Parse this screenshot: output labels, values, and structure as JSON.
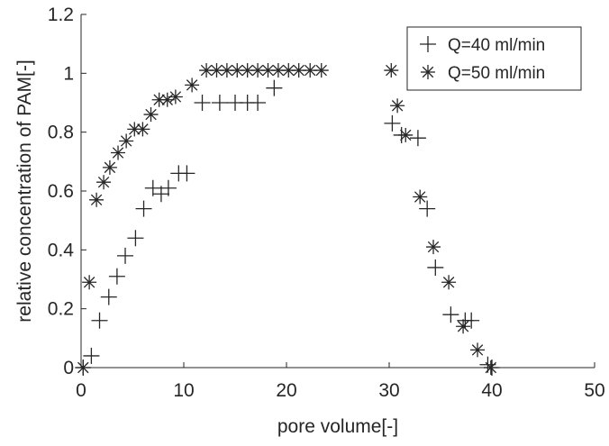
{
  "chart_data": {
    "type": "scatter",
    "title": "",
    "xlabel": "pore volume[-]",
    "ylabel": "relative concentration of PAM[-]",
    "xlim": [
      0,
      50
    ],
    "ylim": [
      0,
      1.2
    ],
    "x_ticks": [
      "0",
      "10",
      "20",
      "30",
      "40",
      "50"
    ],
    "y_ticks": [
      "0",
      "0.2",
      "0.4",
      "0.6",
      "0.8",
      "1",
      "1.2"
    ],
    "grid": false,
    "legend_position": "top-right",
    "colors": {
      "marker": "#262626",
      "axis": "#262626",
      "background": "#ffffff"
    },
    "series": [
      {
        "name": "Q=40 ml/min",
        "marker": "plus",
        "points": [
          [
            0.2,
            0.0
          ],
          [
            1.0,
            0.04
          ],
          [
            1.8,
            0.16
          ],
          [
            2.7,
            0.24
          ],
          [
            3.5,
            0.31
          ],
          [
            4.3,
            0.38
          ],
          [
            5.3,
            0.44
          ],
          [
            6.1,
            0.54
          ],
          [
            7.0,
            0.61
          ],
          [
            7.8,
            0.59
          ],
          [
            8.5,
            0.61
          ],
          [
            9.5,
            0.66
          ],
          [
            10.3,
            0.66
          ],
          [
            11.8,
            0.9
          ],
          [
            13.5,
            0.9
          ],
          [
            15.0,
            0.9
          ],
          [
            16.2,
            0.9
          ],
          [
            17.2,
            0.9
          ],
          [
            18.8,
            0.95
          ],
          [
            30.3,
            0.83
          ],
          [
            31.2,
            0.79
          ],
          [
            32.8,
            0.78
          ],
          [
            33.7,
            0.54
          ],
          [
            34.5,
            0.34
          ],
          [
            36.0,
            0.18
          ],
          [
            37.4,
            0.16
          ],
          [
            38.0,
            0.16
          ],
          [
            39.6,
            0.01
          ],
          [
            40.0,
            0.0
          ]
        ]
      },
      {
        "name": "Q=50 ml/min",
        "marker": "asterisk",
        "points": [
          [
            0.2,
            0.0
          ],
          [
            0.8,
            0.29
          ],
          [
            1.5,
            0.57
          ],
          [
            2.2,
            0.63
          ],
          [
            2.8,
            0.68
          ],
          [
            3.6,
            0.73
          ],
          [
            4.4,
            0.77
          ],
          [
            5.2,
            0.81
          ],
          [
            6.0,
            0.81
          ],
          [
            6.8,
            0.86
          ],
          [
            7.6,
            0.91
          ],
          [
            8.4,
            0.91
          ],
          [
            9.2,
            0.92
          ],
          [
            10.8,
            0.96
          ],
          [
            12.2,
            1.01
          ],
          [
            13.2,
            1.01
          ],
          [
            14.2,
            1.01
          ],
          [
            15.2,
            1.01
          ],
          [
            16.2,
            1.01
          ],
          [
            17.2,
            1.01
          ],
          [
            18.2,
            1.01
          ],
          [
            19.2,
            1.01
          ],
          [
            20.2,
            1.01
          ],
          [
            21.2,
            1.01
          ],
          [
            22.3,
            1.01
          ],
          [
            23.4,
            1.01
          ],
          [
            30.2,
            1.01
          ],
          [
            30.8,
            0.89
          ],
          [
            31.6,
            0.79
          ],
          [
            33.0,
            0.58
          ],
          [
            34.3,
            0.41
          ],
          [
            35.8,
            0.29
          ],
          [
            37.2,
            0.14
          ],
          [
            38.6,
            0.06
          ],
          [
            39.9,
            0.0
          ]
        ]
      }
    ]
  }
}
